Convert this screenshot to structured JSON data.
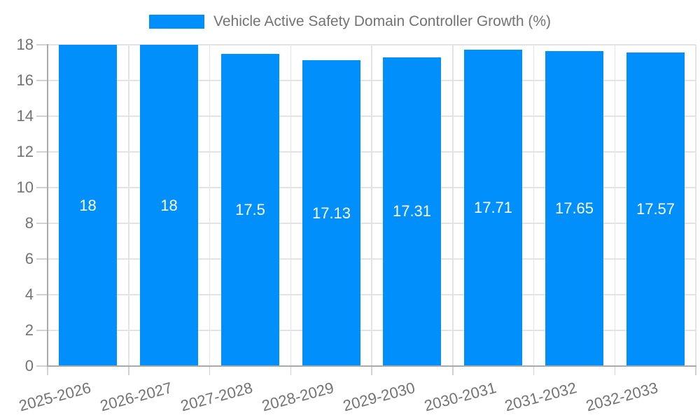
{
  "legend": {
    "position": "top"
  },
  "chart_data": {
    "type": "bar",
    "title": "Vehicle Active Safety Domain Controller Growth (%)",
    "categories": [
      "2025-2026",
      "2026-2027",
      "2027-2028",
      "2028-2029",
      "2029-2030",
      "2030-2031",
      "2031-2032",
      "2032-2033"
    ],
    "values": [
      18,
      18,
      17.5,
      17.13,
      17.31,
      17.71,
      17.65,
      17.57
    ],
    "value_labels": [
      "18",
      "18",
      "17.5",
      "17.13",
      "17.31",
      "17.71",
      "17.65",
      "17.57"
    ],
    "xlabel": "",
    "ylabel": "",
    "ylim": [
      0,
      18
    ],
    "yticks": [
      0,
      2,
      4,
      6,
      8,
      10,
      12,
      14,
      16,
      18
    ],
    "grid": true,
    "legend_position": "top",
    "x_label_rotation_deg": -15,
    "colors": {
      "bar": "#008ffb",
      "grid": "#e3e3e3",
      "axis": "#ababab",
      "tick": "#d2d2d2",
      "text": "#737373",
      "value_text": "#ffffff",
      "background": "#ffffff"
    }
  }
}
